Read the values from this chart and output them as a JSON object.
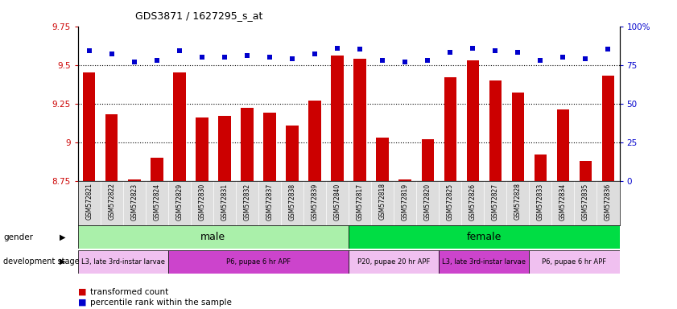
{
  "title": "GDS3871 / 1627295_s_at",
  "samples": [
    "GSM572821",
    "GSM572822",
    "GSM572823",
    "GSM572824",
    "GSM572829",
    "GSM572830",
    "GSM572831",
    "GSM572832",
    "GSM572837",
    "GSM572838",
    "GSM572839",
    "GSM572840",
    "GSM572817",
    "GSM572818",
    "GSM572819",
    "GSM572820",
    "GSM572825",
    "GSM572826",
    "GSM572827",
    "GSM572828",
    "GSM572833",
    "GSM572834",
    "GSM572835",
    "GSM572836"
  ],
  "bar_values": [
    9.45,
    9.18,
    8.76,
    8.9,
    9.45,
    9.16,
    9.17,
    9.22,
    9.19,
    9.11,
    9.27,
    9.56,
    9.54,
    9.03,
    8.76,
    9.02,
    9.42,
    9.53,
    9.4,
    9.32,
    8.92,
    9.21,
    8.88,
    9.43
  ],
  "percentile_values": [
    84,
    82,
    77,
    78,
    84,
    80,
    80,
    81,
    80,
    79,
    82,
    86,
    85,
    78,
    77,
    78,
    83,
    86,
    84,
    83,
    78,
    80,
    79,
    85
  ],
  "ylim_left": [
    8.75,
    9.75
  ],
  "ylim_right": [
    0,
    100
  ],
  "bar_color": "#cc0000",
  "dot_color": "#0000cc",
  "grid_values": [
    9.0,
    9.25,
    9.5
  ],
  "gender_groups": [
    {
      "label": "male",
      "start": 0,
      "end": 11,
      "color": "#aaf0aa"
    },
    {
      "label": "female",
      "start": 12,
      "end": 23,
      "color": "#00dd44"
    }
  ],
  "dev_stage_groups": [
    {
      "label": "L3, late 3rd-instar larvae",
      "start": 0,
      "end": 3,
      "color": "#f0c0f0"
    },
    {
      "label": "P6, pupae 6 hr APF",
      "start": 4,
      "end": 11,
      "color": "#cc44cc"
    },
    {
      "label": "P20, pupae 20 hr APF",
      "start": 12,
      "end": 15,
      "color": "#f0c0f0"
    },
    {
      "label": "L3, late 3rd-instar larvae",
      "start": 16,
      "end": 19,
      "color": "#cc44cc"
    },
    {
      "label": "P6, pupae 6 hr APF",
      "start": 20,
      "end": 23,
      "color": "#f0c0f0"
    }
  ],
  "background_color": "#ffffff",
  "left_ytick_labels": [
    "8.75",
    "9",
    "9.25",
    "9.5",
    "9.75"
  ],
  "left_ytick_values": [
    8.75,
    9.0,
    9.25,
    9.5,
    9.75
  ],
  "right_ytick_labels": [
    "0",
    "25",
    "50",
    "75",
    "100%"
  ],
  "right_ytick_values": [
    0,
    25,
    50,
    75,
    100
  ]
}
